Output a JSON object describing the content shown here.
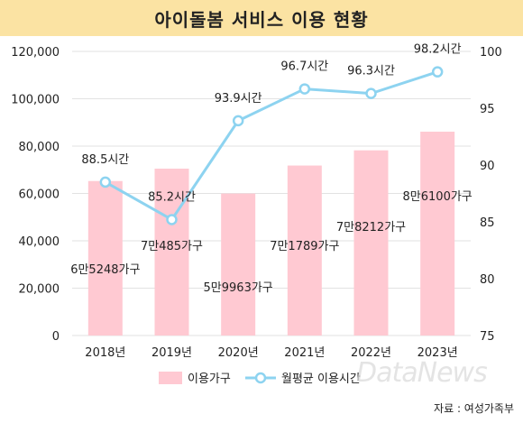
{
  "title": "아이돌봄 서비스 이용 현황",
  "source": "자료 : 여성가족부",
  "watermark": "DataNews",
  "chart_data": {
    "type": "bar+line",
    "categories": [
      "2018년",
      "2019년",
      "2020년",
      "2021년",
      "2022년",
      "2023년"
    ],
    "series": [
      {
        "name": "이용가구",
        "type": "bar",
        "axis": "left",
        "color": "#ffc9d2",
        "values": [
          65248,
          70485,
          59963,
          71789,
          78212,
          86100
        ],
        "labels": [
          "6만5248가구",
          "7만485가구",
          "5만9963가구",
          "7만1789가구",
          "7만8212가구",
          "8만6100가구"
        ]
      },
      {
        "name": "월평균 이용시간",
        "type": "line",
        "axis": "right",
        "color": "#8dd3f0",
        "values": [
          88.5,
          85.2,
          93.9,
          96.7,
          96.3,
          98.2
        ],
        "labels": [
          "88.5시간",
          "85.2시간",
          "93.9시간",
          "96.7시간",
          "96.3시간",
          "98.2시간"
        ]
      }
    ],
    "y_left": {
      "min": 0,
      "max": 120000,
      "ticks": [
        "0",
        "20,000",
        "40,000",
        "60,000",
        "80,000",
        "100,000",
        "120,000"
      ]
    },
    "y_right": {
      "min": 75,
      "max": 100,
      "ticks": [
        "75",
        "80",
        "85",
        "90",
        "95",
        "100"
      ]
    },
    "grid": true,
    "legend": "bottom"
  }
}
